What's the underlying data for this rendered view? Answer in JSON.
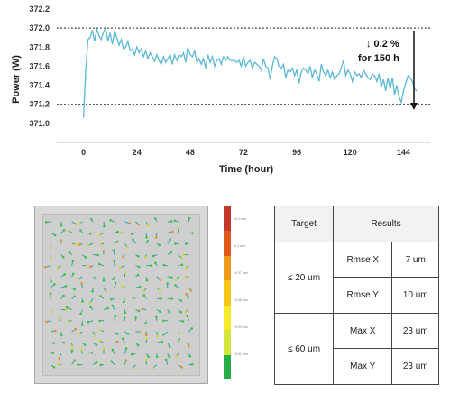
{
  "chart_data": {
    "type": "line",
    "xlabel": "Time (hour)",
    "ylabel": "Power (W)",
    "xlim": [
      -12,
      156
    ],
    "ylim": [
      370.8,
      372.2
    ],
    "xticks": [
      "0",
      "24",
      "48",
      "72",
      "96",
      "120",
      "144"
    ],
    "yticks": [
      "371.0",
      "371.2",
      "371.4",
      "371.6",
      "371.8",
      "372.0",
      "372.2"
    ],
    "grid": false,
    "reference_lines": [
      372.0,
      371.2
    ],
    "annotation": [
      "↓ 0.2 %",
      "for 150 h"
    ],
    "series": [
      {
        "color": "#5bb8d6",
        "x": [
          0,
          1,
          2,
          3,
          4,
          5,
          6,
          7,
          8,
          9,
          10,
          11,
          12,
          13,
          14,
          15,
          16,
          17,
          18,
          19,
          20,
          21,
          22,
          23,
          24,
          25,
          26,
          27,
          28,
          29,
          30,
          31,
          32,
          33,
          34,
          35,
          36,
          37,
          38,
          39,
          40,
          41,
          42,
          43,
          44,
          45,
          46,
          47,
          48,
          49,
          50,
          51,
          52,
          53,
          54,
          55,
          56,
          57,
          58,
          59,
          60,
          61,
          62,
          63,
          64,
          65,
          66,
          67,
          68,
          69,
          70,
          71,
          72,
          73,
          74,
          75,
          76,
          77,
          78,
          79,
          80,
          81,
          82,
          83,
          84,
          85,
          86,
          87,
          88,
          89,
          90,
          91,
          92,
          93,
          94,
          95,
          96,
          97,
          98,
          99,
          100,
          101,
          102,
          103,
          104,
          105,
          106,
          107,
          108,
          109,
          110,
          111,
          112,
          113,
          114,
          115,
          116,
          117,
          118,
          119,
          120,
          121,
          122,
          123,
          124,
          125,
          126,
          127,
          128,
          129,
          130,
          131,
          132,
          133,
          134,
          135,
          136,
          137,
          138,
          139,
          140,
          141,
          142,
          143,
          144,
          145,
          146,
          147,
          148,
          149,
          150
        ],
        "values": [
          371.06,
          371.55,
          371.88,
          371.9,
          371.98,
          371.86,
          371.99,
          371.92,
          371.88,
          371.96,
          372.0,
          371.86,
          371.95,
          371.83,
          371.97,
          371.9,
          371.82,
          371.88,
          371.78,
          371.8,
          371.86,
          371.76,
          371.78,
          371.72,
          371.8,
          371.74,
          371.78,
          371.7,
          371.76,
          371.68,
          371.74,
          371.7,
          371.65,
          371.72,
          371.66,
          371.62,
          371.7,
          371.64,
          371.68,
          371.72,
          371.62,
          371.72,
          371.66,
          371.72,
          371.7,
          371.74,
          371.64,
          371.8,
          371.72,
          371.7,
          371.76,
          371.64,
          371.68,
          371.62,
          371.68,
          371.58,
          371.72,
          371.64,
          371.7,
          371.6,
          371.66,
          371.68,
          371.62,
          371.7,
          371.66,
          371.7,
          371.66,
          371.66,
          371.66,
          371.64,
          371.66,
          371.6,
          371.7,
          371.6,
          371.64,
          371.66,
          371.58,
          371.64,
          371.62,
          371.6,
          371.56,
          371.68,
          371.6,
          371.58,
          371.46,
          371.6,
          371.7,
          371.68,
          371.6,
          371.58,
          371.62,
          371.48,
          371.56,
          371.54,
          371.58,
          371.5,
          371.56,
          371.42,
          371.54,
          371.58,
          371.56,
          371.52,
          371.6,
          371.48,
          371.56,
          371.52,
          371.44,
          371.62,
          371.54,
          371.5,
          371.56,
          371.48,
          371.54,
          371.46,
          371.5,
          371.52,
          371.58,
          371.66,
          371.5,
          371.56,
          371.52,
          371.44,
          371.54,
          371.5,
          371.52,
          371.48,
          371.56,
          371.52,
          371.48,
          371.46,
          371.52,
          371.5,
          371.44,
          371.52,
          371.38,
          371.46,
          371.34,
          371.48,
          371.36,
          371.48,
          371.3,
          371.4,
          371.28,
          371.22,
          371.34,
          371.42,
          371.5,
          371.48,
          371.44,
          371.36,
          371.34
        ]
      }
    ]
  },
  "colorbar": {
    "colors": [
      "#c0392b",
      "#e05a1e",
      "#f29a1e",
      "#f5c518",
      "#f7ea2a",
      "#d5e63a",
      "#27ae4a"
    ],
    "labels": [
      "+0.1 mm",
      "-0.1 mm",
      "+0.07 mm",
      "+0.05 mm",
      "+0.03 mm",
      "+0.01 mm"
    ]
  },
  "results_table": {
    "headers": [
      "Target",
      "Results"
    ],
    "groups": [
      {
        "target": "≤ 20 um",
        "rows": [
          {
            "label": "Rmse X",
            "value": "7 um"
          },
          {
            "label": "Rmse Y",
            "value": "10 um"
          }
        ]
      },
      {
        "target": "≤ 60 um",
        "rows": [
          {
            "label": "Max X",
            "value": "23 um"
          },
          {
            "label": "Max Y",
            "value": "23 um"
          }
        ]
      }
    ]
  }
}
